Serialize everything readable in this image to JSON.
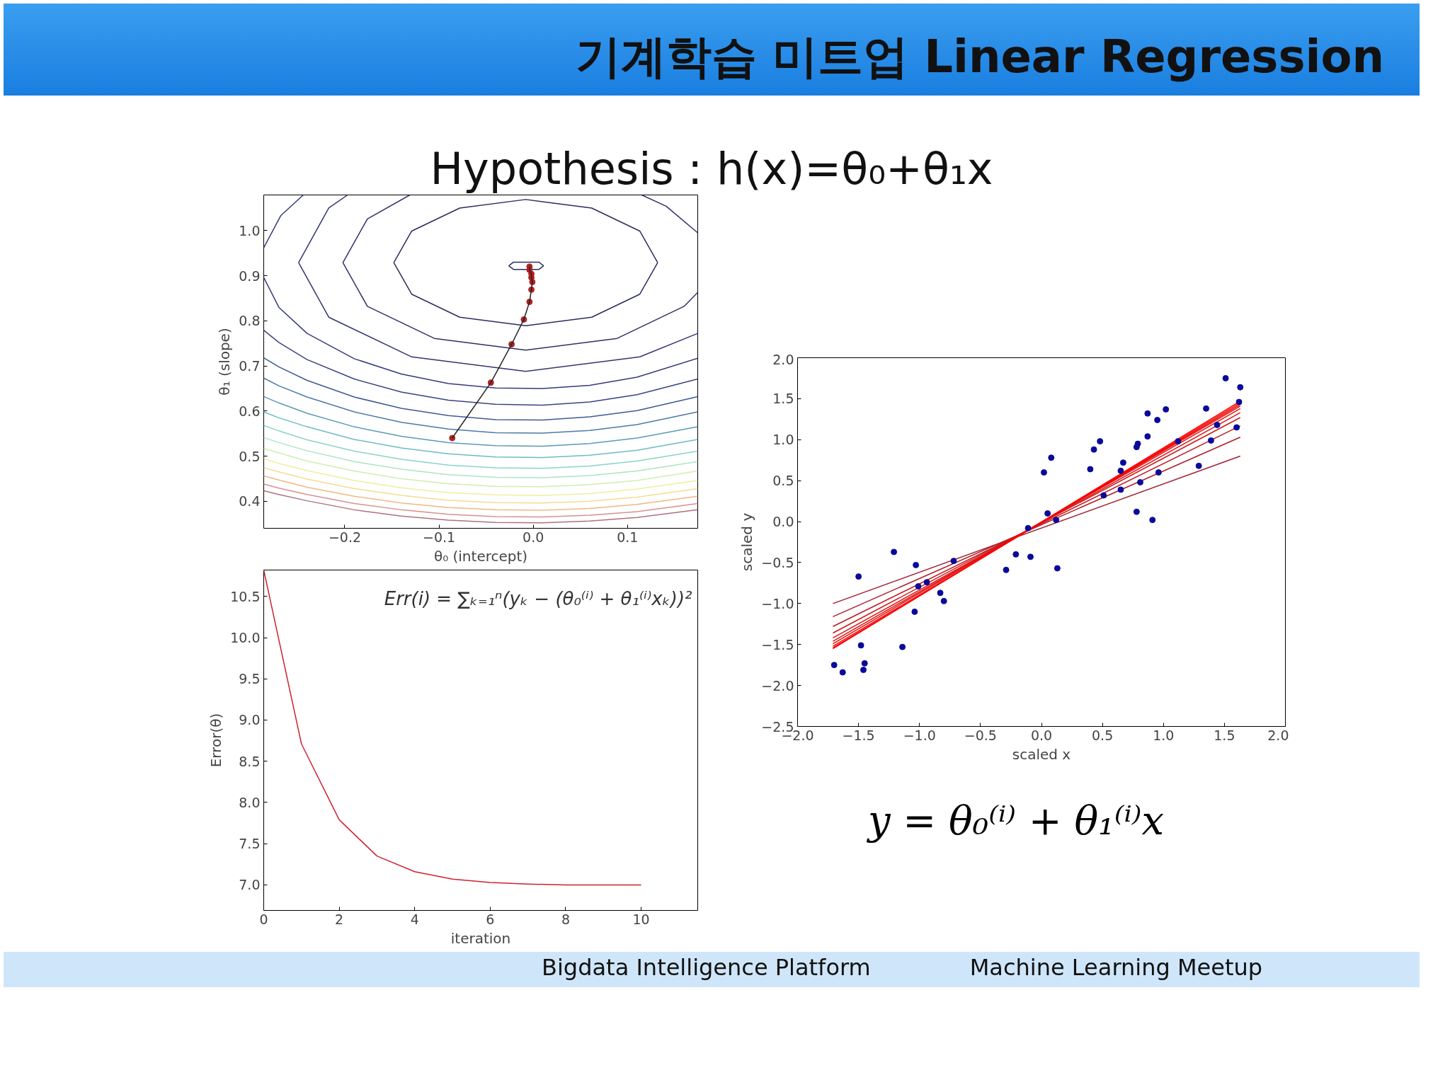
{
  "chart_data": [
    {
      "type": "line",
      "title": "기계학습 미트업   Linear Regression",
      "subtitle": "Hypothesis :  h(x)=θ₀+θ₁x",
      "xlabel": "θ₀ (intercept)",
      "ylabel": "θ₁ (slope)",
      "xlim": [
        -0.286,
        0.1745
      ],
      "ylim": [
        0.34,
        1.079
      ],
      "xticks": [
        {
          "value": -0.2,
          "label": "−0.2"
        },
        {
          "value": -0.1,
          "label": "−0.1"
        },
        {
          "value": 0.0,
          "label": "0.0"
        },
        0.1
      ],
      "yticks": [
        0.4,
        0.5,
        0.6,
        0.7,
        0.8,
        0.9,
        {
          "value": 1.0,
          "label": "1.0"
        }
      ],
      "annotations": [
        "Bigdata Intelligence Platform",
        "Machine Learning Meetup"
      ],
      "series": [
        {
          "color": "#2b2d5e",
          "x": [
            -0.026,
            -0.021,
            0.006,
            0.011
          ],
          "values": [
            0.922,
            0.93,
            0.93,
            0.922
          ]
        },
        {
          "color": "#2b2d5e",
          "x": [
            -0.026,
            -0.021,
            0.006,
            0.011
          ],
          "values": [
            0.922,
            0.914,
            0.914,
            0.922
          ]
        },
        {
          "color": "#2b2d5e",
          "x": [
            -0.148,
            -0.129,
            -0.078,
            -0.008,
            0.062,
            0.113,
            0.132
          ],
          "values": [
            0.929,
            0.999,
            1.05,
            1.069,
            1.05,
            0.999,
            0.929
          ]
        },
        {
          "color": "#2b2d5e",
          "x": [
            -0.148,
            -0.129,
            -0.078,
            -0.008,
            0.062,
            0.113,
            0.132
          ],
          "values": [
            0.929,
            0.859,
            0.808,
            0.789,
            0.808,
            0.859,
            0.929
          ]
        },
        {
          "color": "#2f3068",
          "x": [
            -0.202,
            -0.176,
            -0.131
          ],
          "values": [
            0.929,
            1.026,
            1.079
          ]
        },
        {
          "color": "#2f3068",
          "x": [
            -0.202,
            -0.176,
            -0.105,
            -0.008,
            0.089,
            0.16,
            0.1745
          ],
          "values": [
            0.929,
            0.832,
            0.761,
            0.735,
            0.761,
            0.832,
            0.863
          ]
        },
        {
          "color": "#2f3068",
          "x": [
            0.115,
            0.141,
            0.1745
          ],
          "values": [
            1.079,
            1.054,
            0.995
          ]
        },
        {
          "color": "#333570",
          "x": [
            -0.249,
            -0.217,
            -0.197
          ],
          "values": [
            0.929,
            1.05,
            1.079
          ]
        },
        {
          "color": "#333570",
          "x": [
            -0.249,
            -0.217,
            -0.129,
            -0.008,
            0.113,
            0.1745
          ],
          "values": [
            0.929,
            0.808,
            0.72,
            0.688,
            0.72,
            0.772
          ]
        },
        {
          "color": "#363a78",
          "x": [
            -0.286,
            -0.268,
            -0.244
          ],
          "values": [
            0.962,
            1.033,
            1.079
          ]
        },
        {
          "color": "#363a78",
          "x": [
            -0.286,
            -0.27,
            -0.24,
            -0.19,
            -0.14,
            -0.09,
            -0.04,
            0.01,
            0.06,
            0.11,
            0.1745
          ],
          "values": [
            0.896,
            0.83,
            0.772,
            0.716,
            0.682,
            0.661,
            0.651,
            0.65,
            0.657,
            0.675,
            0.717
          ]
        },
        {
          "color": "#3a4480",
          "x": [
            -0.286,
            -0.27,
            -0.24,
            -0.19,
            -0.14,
            -0.09,
            -0.04,
            0.01,
            0.06,
            0.11,
            0.1745
          ],
          "values": [
            0.779,
            0.752,
            0.714,
            0.671,
            0.642,
            0.624,
            0.615,
            0.613,
            0.62,
            0.636,
            0.671
          ]
        },
        {
          "color": "#3f5a90",
          "x": [
            -0.286,
            -0.27,
            -0.24,
            -0.19,
            -0.14,
            -0.09,
            -0.04,
            0.01,
            0.06,
            0.11,
            0.1745
          ],
          "values": [
            0.718,
            0.698,
            0.668,
            0.631,
            0.606,
            0.59,
            0.581,
            0.58,
            0.587,
            0.601,
            0.632
          ]
        },
        {
          "color": "#4a7aa5",
          "x": [
            -0.286,
            -0.27,
            -0.24,
            -0.19,
            -0.14,
            -0.09,
            -0.04,
            0.01,
            0.06,
            0.11,
            0.1745
          ],
          "values": [
            0.673,
            0.656,
            0.631,
            0.598,
            0.575,
            0.56,
            0.552,
            0.551,
            0.557,
            0.57,
            0.598
          ]
        },
        {
          "color": "#5a9ab5",
          "x": [
            -0.286,
            -0.27,
            -0.24,
            -0.19,
            -0.14,
            -0.09,
            -0.04,
            0.01,
            0.06,
            0.11,
            0.1745
          ],
          "values": [
            0.632,
            0.618,
            0.595,
            0.565,
            0.544,
            0.53,
            0.523,
            0.522,
            0.528,
            0.54,
            0.565
          ]
        },
        {
          "color": "#6cbcc2",
          "x": [
            -0.286,
            -0.27,
            -0.24,
            -0.19,
            -0.14,
            -0.09,
            -0.04,
            0.01,
            0.06,
            0.11,
            0.1745
          ],
          "values": [
            0.598,
            0.585,
            0.565,
            0.537,
            0.518,
            0.505,
            0.498,
            0.497,
            0.502,
            0.513,
            0.537
          ]
        },
        {
          "color": "#8ad4c6",
          "x": [
            -0.286,
            -0.27,
            -0.24,
            -0.19,
            -0.14,
            -0.09,
            -0.04,
            0.01,
            0.06,
            0.11,
            0.1745
          ],
          "values": [
            0.568,
            0.556,
            0.536,
            0.511,
            0.493,
            0.48,
            0.474,
            0.473,
            0.478,
            0.489,
            0.511
          ]
        },
        {
          "color": "#aee4c0",
          "x": [
            -0.286,
            -0.27,
            -0.24,
            -0.19,
            -0.14,
            -0.09,
            -0.04,
            0.01,
            0.06,
            0.11,
            0.1745
          ],
          "values": [
            0.541,
            0.53,
            0.512,
            0.488,
            0.471,
            0.459,
            0.453,
            0.452,
            0.457,
            0.467,
            0.488
          ]
        },
        {
          "color": "#cfeeb0",
          "x": [
            -0.286,
            -0.27,
            -0.24,
            -0.19,
            -0.14,
            -0.09,
            -0.04,
            0.01,
            0.06,
            0.11,
            0.1745
          ],
          "values": [
            0.517,
            0.507,
            0.489,
            0.467,
            0.45,
            0.439,
            0.433,
            0.432,
            0.437,
            0.446,
            0.467
          ]
        },
        {
          "color": "#ecf0a0",
          "x": [
            -0.286,
            -0.27,
            -0.24,
            -0.19,
            -0.14,
            -0.09,
            -0.04,
            0.01,
            0.06,
            0.11,
            0.1745
          ],
          "values": [
            0.494,
            0.484,
            0.468,
            0.446,
            0.43,
            0.419,
            0.414,
            0.413,
            0.417,
            0.427,
            0.446
          ]
        },
        {
          "color": "#f6dc90",
          "x": [
            -0.286,
            -0.27,
            -0.24,
            -0.19,
            -0.14,
            -0.09,
            -0.04,
            0.01,
            0.06,
            0.11,
            0.1745
          ],
          "values": [
            0.474,
            0.465,
            0.449,
            0.428,
            0.413,
            0.402,
            0.397,
            0.396,
            0.4,
            0.409,
            0.428
          ]
        },
        {
          "color": "#f0b884",
          "x": [
            -0.286,
            -0.27,
            -0.24,
            -0.19,
            -0.14,
            -0.09,
            -0.04,
            0.01,
            0.06,
            0.11,
            0.1745
          ],
          "values": [
            0.456,
            0.447,
            0.431,
            0.411,
            0.396,
            0.386,
            0.381,
            0.38,
            0.384,
            0.393,
            0.411
          ]
        },
        {
          "color": "#d89090",
          "x": [
            -0.286,
            -0.27,
            -0.24,
            -0.19,
            -0.14,
            -0.09,
            -0.04,
            0.01,
            0.06,
            0.11,
            0.1745
          ],
          "values": [
            0.438,
            0.429,
            0.415,
            0.395,
            0.381,
            0.371,
            0.366,
            0.365,
            0.369,
            0.377,
            0.395
          ]
        },
        {
          "color": "#b07080",
          "x": [
            -0.286,
            -0.27,
            -0.24,
            -0.19,
            -0.14,
            -0.09,
            -0.04,
            0.01,
            0.06,
            0.11,
            0.1745
          ],
          "values": [
            0.423,
            0.415,
            0.401,
            0.381,
            0.367,
            0.358,
            0.353,
            0.352,
            0.356,
            0.364,
            0.381
          ]
        },
        {
          "type": "scatter",
          "marker": "circle",
          "color": "#b22222",
          "x": [
            -0.086,
            -0.045,
            -0.023,
            -0.01,
            -0.004,
            -0.002,
            -0.001,
            -0.002,
            -0.002,
            -0.004,
            -0.004
          ],
          "values": [
            0.54,
            0.663,
            0.748,
            0.803,
            0.842,
            0.869,
            0.886,
            0.896,
            0.904,
            0.913,
            0.92
          ]
        },
        {
          "color": "#222222",
          "x": [
            -0.086,
            -0.045,
            -0.023,
            -0.01,
            -0.004,
            -0.002,
            -0.001,
            -0.002,
            -0.002,
            -0.004,
            -0.004
          ],
          "values": [
            0.54,
            0.663,
            0.748,
            0.803,
            0.842,
            0.869,
            0.886,
            0.896,
            0.904,
            0.913,
            0.92
          ]
        }
      ]
    },
    {
      "type": "line",
      "xlabel": "iteration",
      "ylabel": "Error(θ)",
      "xlim": [
        0,
        11.5
      ],
      "ylim": [
        6.69,
        10.82
      ],
      "xticks": [
        0,
        2,
        4,
        6,
        8,
        10
      ],
      "yticks": [
        {
          "value": 7.0,
          "label": "7.0"
        },
        7.5,
        {
          "value": 8.0,
          "label": "8.0"
        },
        8.5,
        {
          "value": 9.0,
          "label": "9.0"
        },
        9.5,
        {
          "value": 10.0,
          "label": "10.0"
        },
        10.5
      ],
      "annotations": [
        "Err(i) = ∑ₖ₌₁ⁿ(yₖ − (θ₀⁽ⁱ⁾ + θ₁⁽ⁱ⁾xₖ))²"
      ],
      "x": [
        0,
        1,
        2,
        3,
        4,
        5,
        6,
        7,
        8,
        9,
        10
      ],
      "series": [
        {
          "color": "#cc2233",
          "values": [
            10.82,
            8.71,
            7.79,
            7.35,
            7.16,
            7.07,
            7.03,
            7.01,
            7.0,
            7.0,
            7.0
          ]
        }
      ]
    },
    {
      "type": "scatter",
      "xlabel": "scaled x",
      "ylabel": "scaled y",
      "xlim": [
        -2.0,
        2.0
      ],
      "ylim": [
        -2.5,
        2.0
      ],
      "xticks": [
        {
          "value": -2.0,
          "label": "−2.0"
        },
        {
          "value": -1.5,
          "label": "−1.5"
        },
        {
          "value": -1.0,
          "label": "−1.0"
        },
        {
          "value": -0.5,
          "label": "−0.5"
        },
        {
          "value": 0.0,
          "label": "0.0"
        },
        0.5,
        {
          "value": 1.0,
          "label": "1.0"
        },
        1.5,
        {
          "value": 2.0,
          "label": "2.0"
        }
      ],
      "yticks": [
        {
          "value": -2.5,
          "label": "−2.5"
        },
        {
          "value": -2.0,
          "label": "−2.0"
        },
        {
          "value": -1.5,
          "label": "−1.5"
        },
        {
          "value": -1.0,
          "label": "−1.0"
        },
        {
          "value": -0.5,
          "label": "−0.5"
        },
        {
          "value": 0.0,
          "label": "0.0"
        },
        0.5,
        {
          "value": 1.0,
          "label": "1.0"
        },
        1.5,
        {
          "value": 2.0,
          "label": "2.0"
        }
      ],
      "annotations": [
        "y = θ₀⁽ⁱ⁾ + θ₁⁽ⁱ⁾x"
      ],
      "series": [
        {
          "marker": "circle",
          "color": "#0a0a9a",
          "x": [
            -1.7,
            -1.63,
            -1.5,
            -1.48,
            -1.46,
            -1.45,
            -1.21,
            -1.14,
            -1.03,
            -1.04,
            -1.01,
            -0.94,
            -0.83,
            -0.8,
            -0.72,
            -0.29,
            -0.21,
            -0.11,
            -0.09,
            0.02,
            0.05,
            0.08,
            0.12,
            0.13,
            0.4,
            0.43,
            0.48,
            0.51,
            0.65,
            0.65,
            0.67,
            0.78,
            0.78,
            0.79,
            0.81,
            0.87,
            0.87,
            0.91,
            0.95,
            0.96,
            1.02,
            1.12,
            1.29,
            1.35,
            1.39,
            1.44,
            1.51,
            1.6,
            1.63,
            1.62
          ],
          "values": [
            -1.75,
            -1.84,
            -0.67,
            -1.51,
            -1.81,
            -1.73,
            -0.37,
            -1.53,
            -0.53,
            -1.1,
            -0.79,
            -0.74,
            -0.87,
            -0.97,
            -0.48,
            -0.59,
            -0.4,
            -0.08,
            -0.43,
            0.6,
            0.1,
            0.78,
            0.02,
            -0.57,
            0.64,
            0.88,
            0.98,
            0.32,
            0.62,
            0.39,
            0.72,
            0.12,
            0.91,
            0.95,
            0.48,
            1.32,
            1.04,
            0.02,
            1.24,
            0.6,
            1.37,
            0.98,
            0.68,
            1.38,
            0.99,
            1.18,
            1.75,
            1.15,
            1.64,
            1.46
          ]
        },
        {
          "type": "line",
          "color": "#a02030",
          "x": [
            -1.71,
            1.63
          ],
          "values": [
            -1.0,
            0.8
          ]
        },
        {
          "type": "line",
          "color": "#b01c28",
          "x": [
            -1.71,
            1.63
          ],
          "values": [
            -1.16,
            1.03
          ]
        },
        {
          "type": "line",
          "color": "#c01820",
          "x": [
            -1.71,
            1.63
          ],
          "values": [
            -1.28,
            1.17
          ]
        },
        {
          "type": "line",
          "color": "#cc1818",
          "x": [
            -1.71,
            1.63
          ],
          "values": [
            -1.36,
            1.27
          ]
        },
        {
          "type": "line",
          "color": "#d81414",
          "x": [
            -1.71,
            1.63
          ],
          "values": [
            -1.42,
            1.33
          ]
        },
        {
          "type": "line",
          "color": "#e01010",
          "x": [
            -1.71,
            1.63
          ],
          "values": [
            -1.46,
            1.38
          ]
        },
        {
          "type": "line",
          "color": "#e80c0c",
          "x": [
            -1.71,
            1.63
          ],
          "values": [
            -1.49,
            1.41
          ]
        },
        {
          "type": "line",
          "color": "#f00808",
          "x": [
            -1.71,
            1.63
          ],
          "values": [
            -1.52,
            1.43
          ]
        },
        {
          "type": "line",
          "color": "#f40404",
          "x": [
            -1.71,
            1.63
          ],
          "values": [
            -1.54,
            1.45
          ]
        },
        {
          "type": "line",
          "color": "#ff0000",
          "x": [
            -1.71,
            1.63
          ],
          "values": [
            -1.55,
            1.47
          ]
        }
      ]
    }
  ]
}
